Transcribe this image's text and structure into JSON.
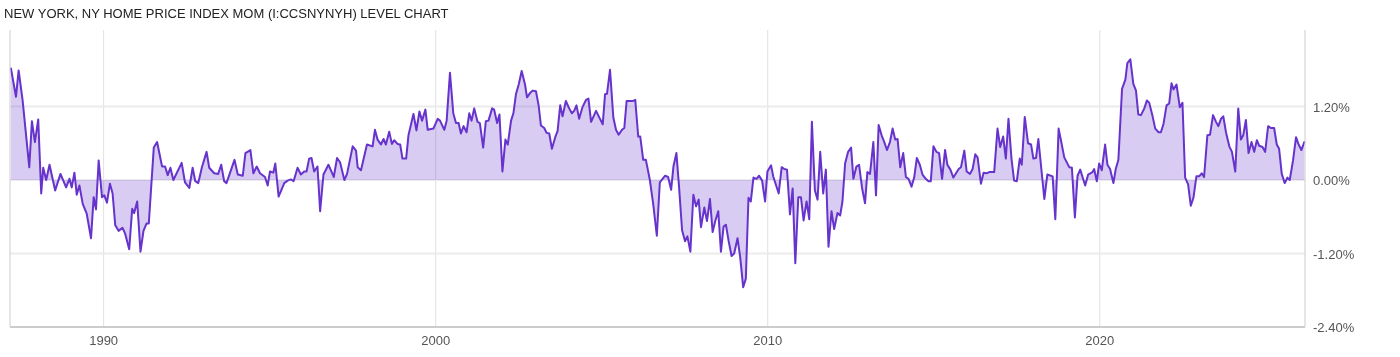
{
  "chart_data": {
    "type": "area",
    "title": "NEW YORK, NY HOME PRICE INDEX MOM (I:CCSNYNYH) LEVEL CHART",
    "xlim": [
      1987.18,
      2026.18
    ],
    "xticks": [
      1990,
      2000,
      2010,
      2020
    ],
    "ylim": [
      -2.4,
      2.45
    ],
    "yticks": [
      {
        "value": 1.2,
        "label": "1.20%"
      },
      {
        "value": 0,
        "label": "0.00%"
      },
      {
        "value": -1.2,
        "label": "-1.20%"
      },
      {
        "value": -2.4,
        "label": "-2.40%"
      }
    ],
    "grid": true,
    "line_style": "solid",
    "series": [
      {
        "color": "#6633cc",
        "x": [
          1987.21,
          1987.36,
          1987.44,
          1987.56,
          1987.76,
          1987.84,
          1987.93,
          1988.03,
          1988.12,
          1988.18,
          1988.27,
          1988.37,
          1988.54,
          1988.7,
          1988.87,
          1988.97,
          1989.04,
          1989.12,
          1989.19,
          1989.27,
          1989.37,
          1989.49,
          1989.62,
          1989.7,
          1989.77,
          1989.85,
          1989.95,
          1990.02,
          1990.1,
          1990.19,
          1990.27,
          1990.35,
          1990.45,
          1990.57,
          1990.65,
          1990.77,
          1990.86,
          1990.92,
          1991.01,
          1991.11,
          1991.2,
          1991.29,
          1991.36,
          1991.51,
          1991.61,
          1991.76,
          1991.85,
          1991.93,
          1992.01,
          1992.1,
          1992.35,
          1992.45,
          1992.58,
          1992.68,
          1992.76,
          1992.85,
          1992.96,
          1993.1,
          1993.18,
          1993.33,
          1993.45,
          1993.54,
          1993.63,
          1993.7,
          1993.94,
          1994.04,
          1994.19,
          1994.27,
          1994.42,
          1994.51,
          1994.61,
          1994.71,
          1994.86,
          1994.94,
          1995.01,
          1995.11,
          1995.17,
          1995.27,
          1995.44,
          1995.54,
          1995.64,
          1995.72,
          1995.84,
          1995.94,
          1996.04,
          1996.11,
          1996.19,
          1996.26,
          1996.34,
          1996.44,
          1996.52,
          1996.62,
          1996.77,
          1996.93,
          1997.03,
          1997.12,
          1997.25,
          1997.33,
          1997.5,
          1997.6,
          1997.65,
          1997.75,
          1997.93,
          1998.1,
          1998.17,
          1998.25,
          1998.35,
          1998.43,
          1998.5,
          1998.6,
          1998.68,
          1998.75,
          1998.85,
          1998.93,
          1999.0,
          1999.11,
          1999.18,
          1999.33,
          1999.42,
          1999.51,
          1999.59,
          1999.69,
          1999.76,
          1999.93,
          2000.06,
          2000.13,
          2000.26,
          2000.33,
          2000.43,
          2000.53,
          2000.61,
          2000.69,
          2000.76,
          2000.84,
          2000.93,
          2001.01,
          2001.08,
          2001.16,
          2001.26,
          2001.33,
          2001.43,
          2001.51,
          2001.59,
          2001.7,
          2001.76,
          2001.85,
          2001.92,
          2002.01,
          2002.1,
          2002.17,
          2002.27,
          2002.34,
          2002.42,
          2002.5,
          2002.59,
          2002.69,
          2002.75,
          2002.84,
          2002.92,
          2003.02,
          2003.1,
          2003.17,
          2003.27,
          2003.34,
          2003.42,
          2003.5,
          2003.6,
          2003.67,
          2003.75,
          2003.82,
          2003.92,
          2004.02,
          2004.1,
          2004.17,
          2004.24,
          2004.32,
          2004.42,
          2004.53,
          2004.6,
          2004.68,
          2004.83,
          2004.93,
          2005.03,
          2005.1,
          2005.16,
          2005.25,
          2005.35,
          2005.43,
          2005.51,
          2005.61,
          2005.68,
          2005.75,
          2005.93,
          2006.01,
          2006.1,
          2006.16,
          2006.25,
          2006.33,
          2006.45,
          2006.55,
          2006.66,
          2006.75,
          2006.91,
          2007.0,
          2007.09,
          2007.16,
          2007.25,
          2007.33,
          2007.42,
          2007.51,
          2007.58,
          2007.67,
          2007.76,
          2007.84,
          2007.92,
          2007.99,
          2008.09,
          2008.17,
          2008.26,
          2008.34,
          2008.42,
          2008.51,
          2008.59,
          2008.67,
          2008.74,
          2008.82,
          2008.91,
          2008.99,
          2009.09,
          2009.17,
          2009.26,
          2009.34,
          2009.42,
          2009.49,
          2009.57,
          2009.66,
          2009.74,
          2009.83,
          2009.92,
          2009.99,
          2010.1,
          2010.17,
          2010.33,
          2010.42,
          2010.5,
          2010.58,
          2010.67,
          2010.75,
          2010.83,
          2010.92,
          2011.0,
          2011.08,
          2011.17,
          2011.25,
          2011.33,
          2011.42,
          2011.5,
          2011.58,
          2011.67,
          2011.75,
          2011.83,
          2011.92,
          2012.0,
          2012.1,
          2012.18,
          2012.25,
          2012.33,
          2012.42,
          2012.51,
          2012.58,
          2012.67,
          2012.75,
          2012.84,
          2012.93,
          2013.0,
          2013.08,
          2013.18,
          2013.26,
          2013.34,
          2013.43,
          2013.51,
          2013.59,
          2013.68,
          2013.76,
          2013.84,
          2013.91,
          2013.99,
          2014.08,
          2014.16,
          2014.24,
          2014.33,
          2014.41,
          2014.49,
          2014.58,
          2014.66,
          2014.76,
          2014.84,
          2014.91,
          2014.99,
          2015.08,
          2015.16,
          2015.25,
          2015.34,
          2015.41,
          2015.5,
          2015.59,
          2015.67,
          2015.75,
          2015.82,
          2015.92,
          2015.99,
          2016.09,
          2016.17,
          2016.25,
          2016.32,
          2016.42,
          2016.5,
          2016.59,
          2016.67,
          2016.82,
          2016.92,
          2017.0,
          2017.09,
          2017.17,
          2017.25,
          2017.34,
          2017.42,
          2017.5,
          2017.59,
          2017.65,
          2017.74,
          2017.84,
          2017.93,
          2018.0,
          2018.08,
          2018.15,
          2018.33,
          2018.42,
          2018.58,
          2018.66,
          2018.76,
          2018.83,
          2018.93,
          2019.08,
          2019.16,
          2019.25,
          2019.33,
          2019.41,
          2019.56,
          2019.65,
          2019.78,
          2019.83,
          2019.91,
          2019.98,
          2020.06,
          2020.16,
          2020.23,
          2020.31,
          2020.41,
          2020.48,
          2020.56,
          2020.67,
          2020.77,
          2020.83,
          2020.92,
          2021.01,
          2021.09,
          2021.16,
          2021.24,
          2021.34,
          2021.42,
          2021.49,
          2021.59,
          2021.67,
          2021.77,
          2021.84,
          2021.92,
          2022.01,
          2022.09,
          2022.16,
          2022.22,
          2022.31,
          2022.41,
          2022.49,
          2022.57,
          2022.66,
          2022.74,
          2022.82,
          2022.91,
          2022.99,
          2023.07,
          2023.14,
          2023.24,
          2023.32,
          2023.41,
          2023.5,
          2023.57,
          2023.65,
          2023.72,
          2023.8,
          2023.9,
          2023.98,
          2024.08,
          2024.17,
          2024.25,
          2024.32,
          2024.4,
          2024.48,
          2024.57,
          2024.65,
          2024.73,
          2024.8,
          2024.9,
          2024.98,
          2025.07,
          2025.15,
          2025.25,
          2025.33,
          2025.4,
          2025.48,
          2025.57,
          2025.65,
          2025.72,
          2025.82,
          2025.91,
          2025.98,
          2026.07,
          2026.16
        ],
        "values": [
          1.82,
          1.36,
          1.79,
          1.3,
          0.21,
          0.96,
          0.62,
          0.99,
          -0.22,
          0.2,
          0,
          0.25,
          -0.17,
          0.1,
          -0.12,
          0.02,
          -0.12,
          0.12,
          -0.24,
          -0.09,
          -0.39,
          -0.55,
          -0.95,
          -0.28,
          -0.48,
          0.32,
          -0.28,
          -0.25,
          -0.37,
          -0.06,
          -0.22,
          -0.74,
          -0.83,
          -0.78,
          -0.88,
          -1.13,
          -0.47,
          -0.54,
          -0.35,
          -1.17,
          -0.83,
          -0.71,
          -0.71,
          0.53,
          0.62,
          0.22,
          0.22,
          0.08,
          0.2,
          0,
          0.28,
          -0.04,
          -0.13,
          0.2,
          -0.02,
          -0.05,
          0.21,
          0.46,
          0.2,
          0.11,
          0.1,
          0.25,
          -0.02,
          -0.05,
          0.33,
          0.09,
          0.07,
          0.44,
          0.49,
          0.11,
          0.22,
          0.11,
          0.05,
          -0.09,
          0.14,
          0.12,
          0.27,
          -0.27,
          -0.05,
          -0.01,
          0.01,
          -0.02,
          0.2,
          0.09,
          0.14,
          0.14,
          0.35,
          0.36,
          0.14,
          0.22,
          -0.51,
          0.09,
          0.25,
          0.05,
          0.36,
          0.29,
          0,
          0.1,
          0.55,
          0.48,
          0.21,
          0.16,
          0.58,
          0.55,
          0.82,
          0.66,
          0.58,
          0.67,
          0.58,
          0.79,
          0.59,
          0.65,
          0.59,
          0.58,
          0.35,
          0.35,
          0.73,
          1.08,
          0.81,
          1.12,
          0.97,
          1.15,
          0.82,
          0.84,
          1.0,
          0.97,
          0.82,
          0.97,
          1.75,
          1.09,
          0.93,
          0.93,
          0.76,
          0.88,
          0.78,
          1.09,
          0.97,
          1.17,
          0.95,
          0.93,
          0.53,
          0.96,
          0.97,
          1.17,
          1.15,
          0.93,
          1.07,
          0.14,
          0.66,
          0.58,
          0.97,
          1.09,
          1.41,
          1.56,
          1.78,
          1.56,
          1.35,
          1.42,
          1.46,
          1.45,
          1.22,
          0.89,
          0.85,
          0.77,
          0.76,
          0.51,
          0.7,
          0.8,
          1.22,
          1.04,
          1.29,
          1.17,
          1.09,
          1.13,
          1.22,
          1.0,
          1.19,
          1.31,
          1.33,
          0.95,
          1.13,
          1.02,
          0.91,
          1.4,
          1.41,
          1.8,
          1.02,
          0.82,
          0.74,
          0.82,
          0.85,
          1.29,
          1.29,
          1.31,
          0.71,
          0.71,
          0.33,
          0.33,
          0,
          -0.39,
          -0.91,
          -0.04,
          0.07,
          0.05,
          -0.16,
          0.22,
          0.44,
          -0.12,
          -0.82,
          -1.0,
          -0.92,
          -1.17,
          -0.24,
          -0.43,
          -0.32,
          -0.77,
          -0.45,
          -0.67,
          -0.31,
          -0.85,
          -0.67,
          -0.51,
          -1.17,
          -0.76,
          -0.73,
          -0.99,
          -1.24,
          -1.2,
          -0.95,
          -1.26,
          -1.75,
          -1.61,
          -0.29,
          -0.35,
          0.04,
          0.02,
          0.07,
          -0.01,
          -0.35,
          0.14,
          0.24,
          0.05,
          -0.22,
          0.21,
          0.18,
          0.17,
          -0.56,
          -0.14,
          -1.36,
          -0.28,
          -0.28,
          -0.66,
          -0.35,
          -0.64,
          0.95,
          -0.17,
          -0.32,
          0.46,
          -0.22,
          0.17,
          -1.09,
          -0.51,
          -0.8,
          -0.54,
          -0.58,
          -0.35,
          0.27,
          0.46,
          0.53,
          0.02,
          0.22,
          0.25,
          -0.13,
          -0.38,
          0.13,
          0.1,
          0.62,
          -0.25,
          0.9,
          0.73,
          0.62,
          0.49,
          0.62,
          0.84,
          0.66,
          0.67,
          0.21,
          0.44,
          0.05,
          0.02,
          -0.11,
          0.04,
          0.36,
          0.25,
          0.09,
          0.02,
          -0.02,
          -0.02,
          0.55,
          0.46,
          0.44,
          0.02,
          0.49,
          0.25,
          0.17,
          0.04,
          0.11,
          0.18,
          0.21,
          0.48,
          0.14,
          0.1,
          0.18,
          0.42,
          0.37,
          -0.06,
          0.12,
          0.11,
          0.13,
          0.13,
          0.84,
          0.54,
          0.71,
          0.35,
          1.0,
          0.35,
          -0.01,
          -0.02,
          0.35,
          0.25,
          1.03,
          0.6,
          0.58,
          0.35,
          0.36,
          0.67,
          -0.31,
          0.09,
          0.06,
          -0.64,
          0.84,
          0.65,
          0.37,
          0.21,
          0.2,
          -0.61,
          0.07,
          0.17,
          -0.09,
          0.09,
          0.13,
          0.18,
          -0.02,
          0.27,
          0.16,
          0.58,
          0.25,
          0.18,
          -0.05,
          0.18,
          0.33,
          1.49,
          1.64,
          1.91,
          1.97,
          1.57,
          1.46,
          1.07,
          1.06,
          1.17,
          1.3,
          1.26,
          1.04,
          0.84,
          0.78,
          0.78,
          0.92,
          1.22,
          1.25,
          1.58,
          1.48,
          1.56,
          1.19,
          1.26,
          0.04,
          -0.07,
          -0.42,
          -0.29,
          0.06,
          0.06,
          0.11,
          0.05,
          0.73,
          0.74,
          1.06,
          0.95,
          0.88,
          1.0,
          1.04,
          0.78,
          0.55,
          0.46,
          0.14,
          1.17,
          0.66,
          0.73,
          0.98,
          0.44,
          0.62,
          0.46,
          0.65,
          0.56,
          0.54,
          0.46,
          0.88,
          0.85,
          0.85,
          0.58,
          0.51,
          0.1,
          -0.05,
          0.04,
          0.0,
          0.32,
          0.7,
          0.59,
          0.49,
          0.62
        ]
      }
    ]
  }
}
